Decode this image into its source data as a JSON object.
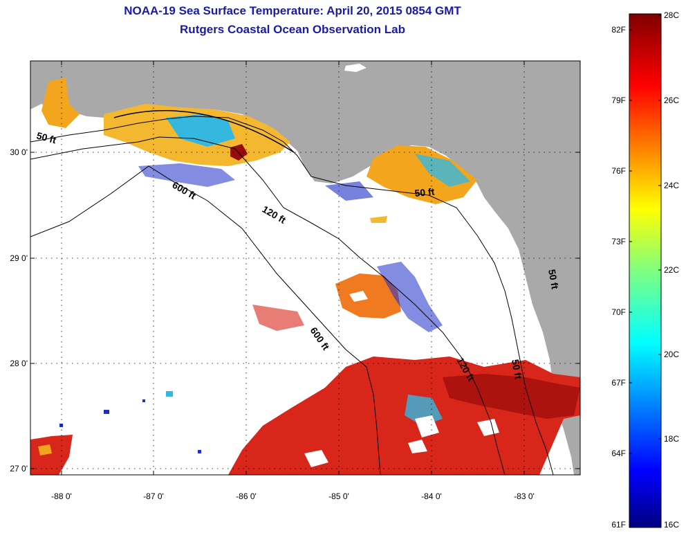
{
  "title": {
    "line1": "NOAA-19 Sea Surface Temperature:  April 20, 2015 0854 GMT",
    "line2": "Rutgers Coastal Ocean Observation Lab"
  },
  "axes": {
    "lon_labels": [
      "-88 0'",
      "-87 0'",
      "-86 0'",
      "-85 0'",
      "-84 0'",
      "-83 0'"
    ],
    "lat_labels": [
      "30 0'",
      "29 0'",
      "28 0'",
      "27 0'"
    ]
  },
  "contours": {
    "labels": [
      "50 ft",
      "600 ft",
      "120 ft",
      "50 ft",
      "600 ft",
      "120 ft",
      "50 ft",
      "50 ft"
    ]
  },
  "colorbar": {
    "fahrenheit": [
      "82F",
      "79F",
      "76F",
      "73F",
      "70F",
      "67F",
      "64F",
      "61F"
    ],
    "celsius": [
      "28C",
      "26C",
      "24C",
      "22C",
      "20C",
      "18C",
      "16C"
    ]
  },
  "colors": {
    "land": "#a9a9a9",
    "ocean_nodata": "#ffffff",
    "title": "#1a1aa8",
    "warm": "#d8261a",
    "hot": "#9a0c0c",
    "mid": "#f4a51e",
    "cool": "#34b8e0",
    "cold": "#1c2fc8"
  }
}
